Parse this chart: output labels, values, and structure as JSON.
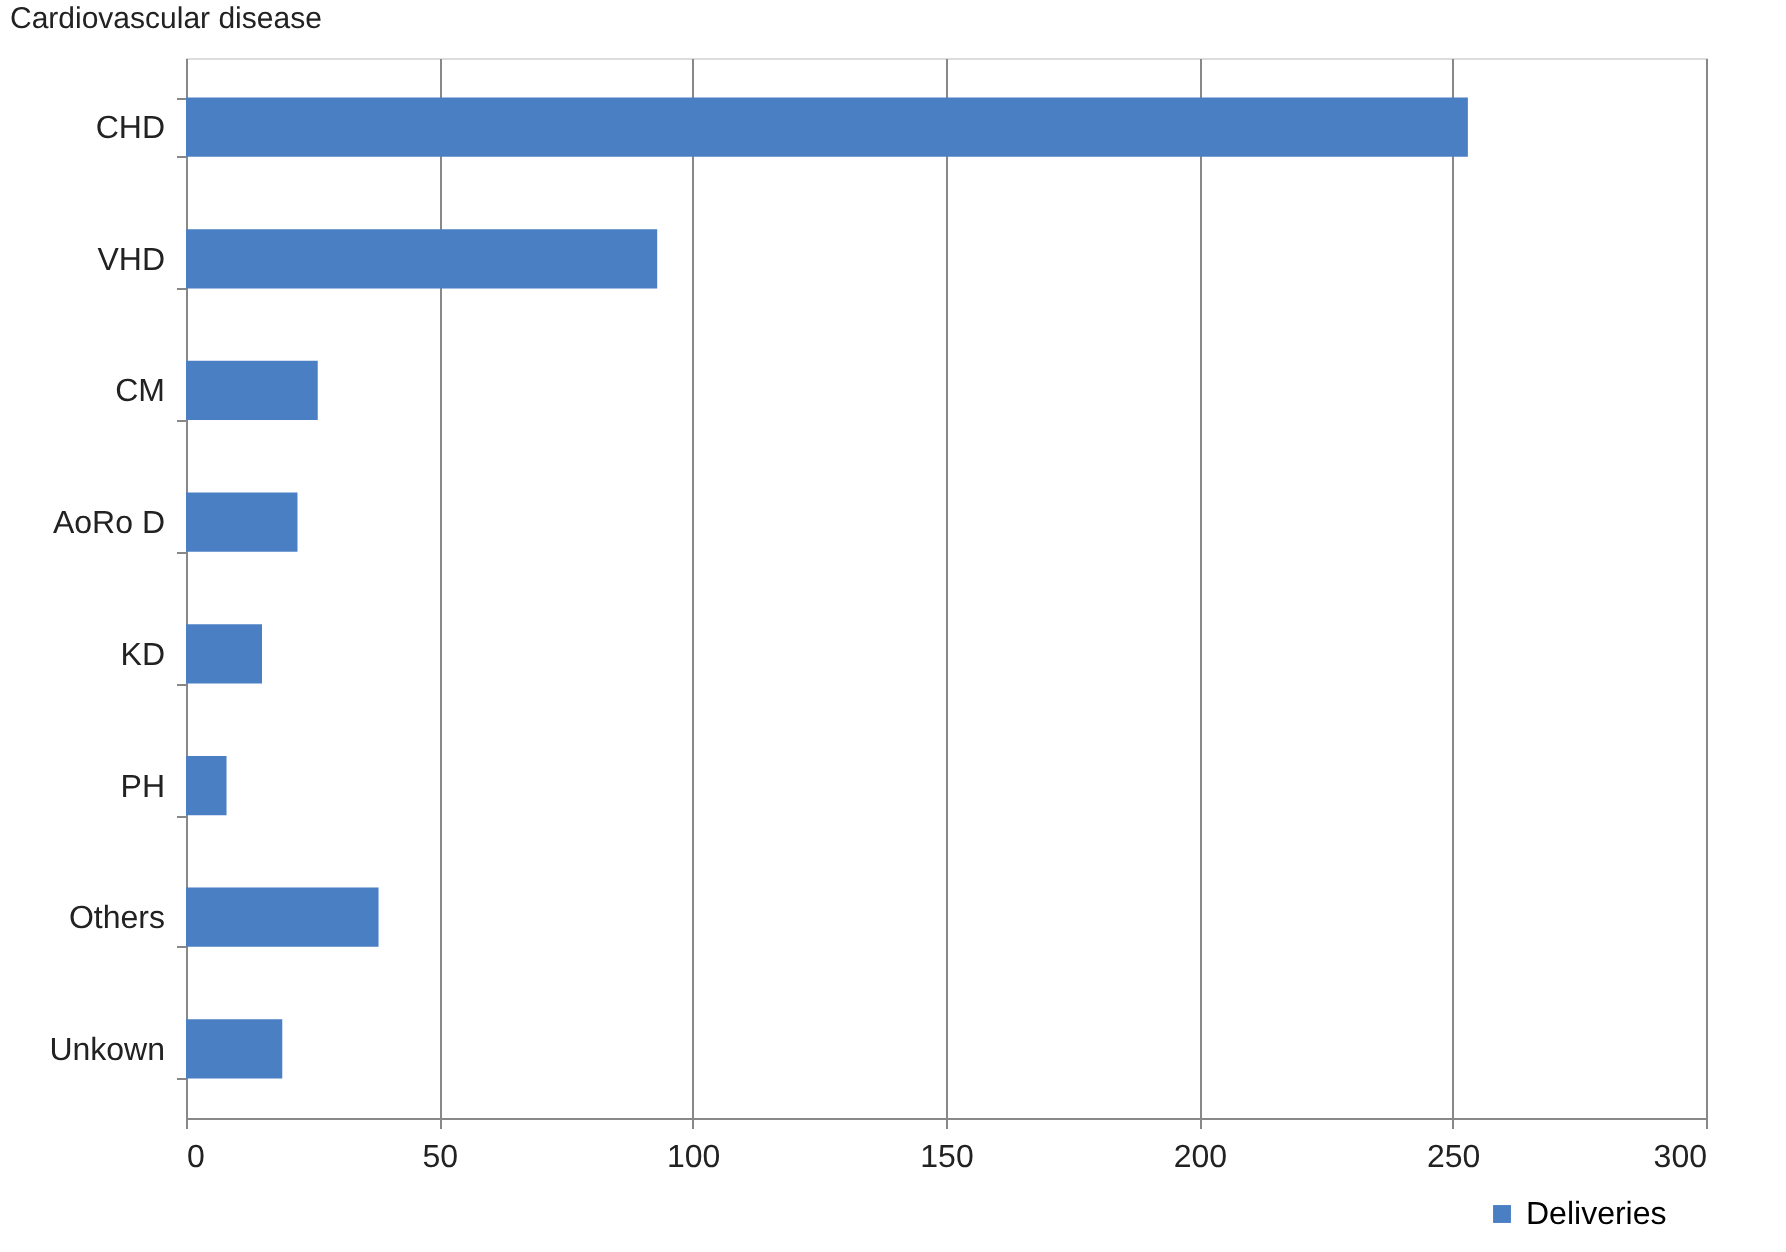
{
  "chart_data": {
    "type": "bar",
    "orientation": "horizontal",
    "ylabel": "Cardiovascular disease",
    "categories": [
      "CHD",
      "VHD",
      "CM",
      "AoRo D",
      "KD",
      "PH",
      "Others",
      "Unkown"
    ],
    "series": [
      {
        "name": "Deliveries",
        "color": "#4a7fc4",
        "values": [
          253,
          93,
          26,
          22,
          15,
          8,
          38,
          19
        ]
      }
    ],
    "xlim": [
      0,
      300
    ],
    "xticks": [
      0,
      50,
      100,
      150,
      200,
      250,
      300
    ],
    "grid": "x",
    "legend": "bottom right"
  }
}
